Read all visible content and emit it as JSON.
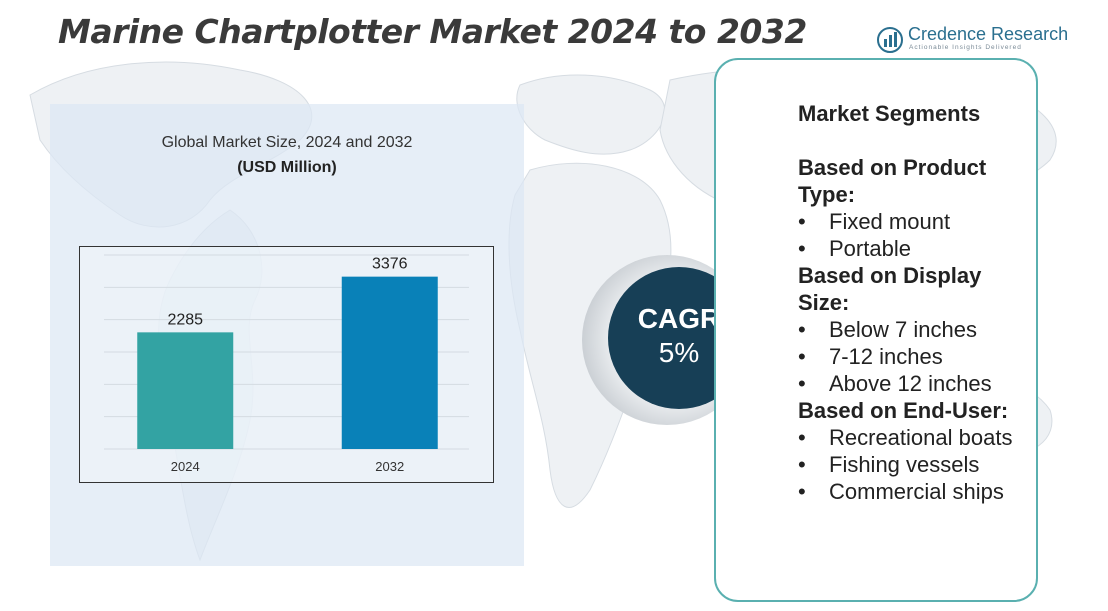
{
  "title": "Marine Chartplotter Market 2024 to 2032",
  "logo": {
    "name": "Credence Research",
    "tagline": "Actionable Insights Delivered",
    "icon": "bar-chart-circle-icon",
    "color": "#2a6f8f"
  },
  "chart": {
    "title": "Global Market Size, 2024 and 2032",
    "subtitle": "(USD Million)"
  },
  "chart_data": {
    "type": "bar",
    "categories": [
      "2024",
      "2032"
    ],
    "values": [
      2285,
      3376
    ],
    "colors": [
      "#33a3a3",
      "#0981b8"
    ],
    "title": "Global Market Size, 2024 and 2032",
    "subtitle": "(USD Million)",
    "xlabel": "",
    "ylabel": "",
    "ylim": [
      0,
      3800
    ],
    "grid": true,
    "legend": "none"
  },
  "cagr": {
    "label": "CAGR",
    "value": "5%"
  },
  "segments": {
    "heading": "Market Segments",
    "groups": [
      {
        "title": "Based on Product Type:",
        "items": [
          "Fixed mount",
          "Portable"
        ]
      },
      {
        "title": "Based on Display Size:",
        "items": [
          "Below 7 inches",
          "7-12 inches",
          "Above 12 inches"
        ]
      },
      {
        "title": "Based on End-User:",
        "items": [
          "Recreational boats",
          "Fishing vessels",
          "Commercial ships"
        ]
      }
    ]
  }
}
